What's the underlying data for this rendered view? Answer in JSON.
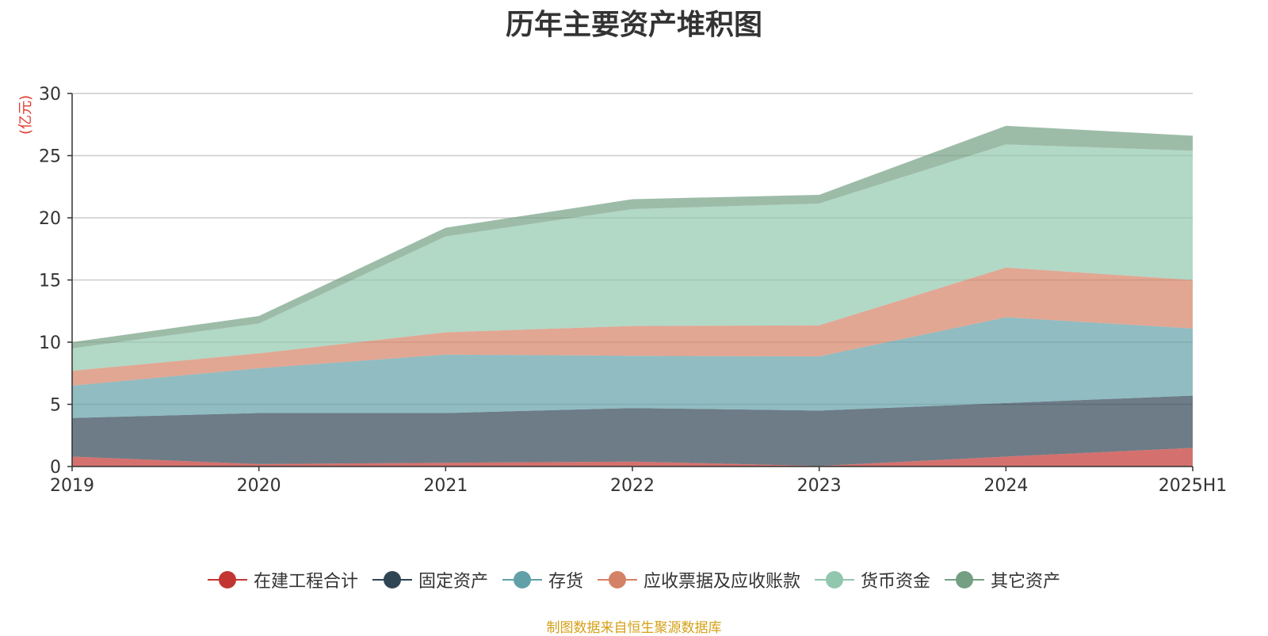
{
  "chart_data": {
    "type": "area",
    "stacked": true,
    "title": "历年主要资产堆积图",
    "unit": "(亿元)",
    "categories": [
      "2019",
      "2020",
      "2021",
      "2022",
      "2023",
      "2024",
      "2025H1"
    ],
    "ylim": [
      0,
      30
    ],
    "yticks": [
      0,
      5,
      10,
      15,
      20,
      25,
      30
    ],
    "grid": true,
    "legend_position": "bottom",
    "series": [
      {
        "name": "在建工程合计",
        "color": "#c23531",
        "values": [
          0.8,
          0.2,
          0.3,
          0.4,
          0.05,
          0.8,
          1.5
        ]
      },
      {
        "name": "固定资产",
        "color": "#2f4554",
        "values": [
          3.1,
          4.1,
          4.0,
          4.3,
          4.45,
          4.3,
          4.2
        ]
      },
      {
        "name": "存货",
        "color": "#61a0a8",
        "values": [
          2.6,
          3.6,
          4.7,
          4.2,
          4.35,
          6.9,
          5.4
        ]
      },
      {
        "name": "应收票据及应收账款",
        "color": "#d48265",
        "values": [
          1.2,
          1.2,
          1.8,
          2.4,
          2.5,
          4.0,
          3.9
        ]
      },
      {
        "name": "货币资金",
        "color": "#91c7ae",
        "values": [
          1.8,
          2.4,
          7.7,
          9.4,
          9.8,
          9.9,
          10.4
        ]
      },
      {
        "name": "其它资产",
        "color": "#749f83",
        "values": [
          0.5,
          0.6,
          0.7,
          0.8,
          0.7,
          1.5,
          1.2
        ]
      }
    ]
  },
  "source_note": "制图数据来自恒生聚源数据库"
}
